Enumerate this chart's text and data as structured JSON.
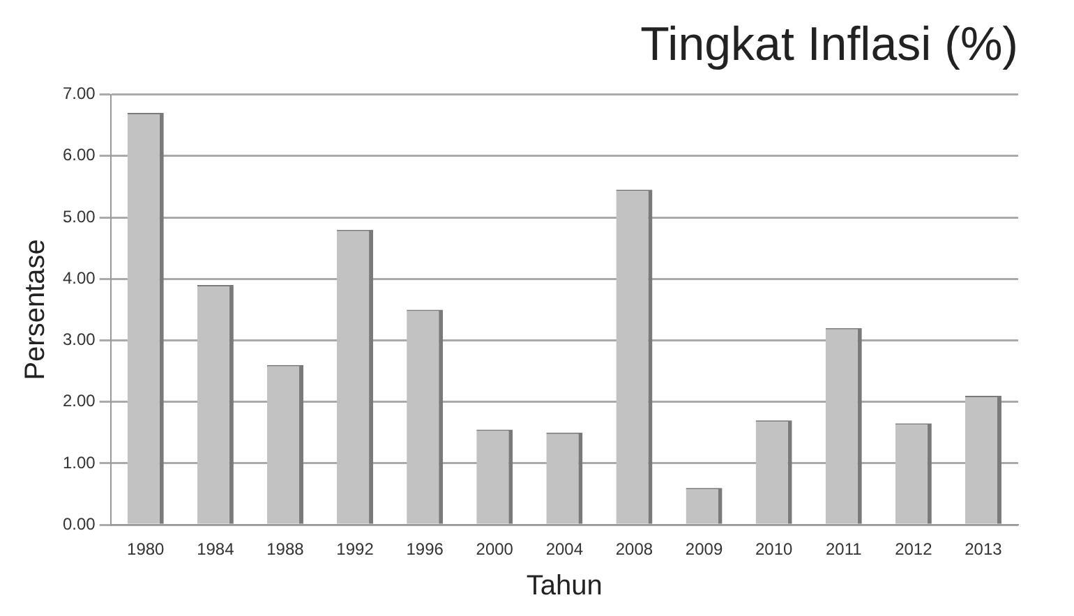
{
  "chart_data": {
    "type": "bar",
    "title": "Tingkat Inflasi (%)",
    "xlabel": "Tahun",
    "ylabel": "Persentase",
    "categories": [
      "1980",
      "1984",
      "1988",
      "1992",
      "1996",
      "2000",
      "2004",
      "2008",
      "2009",
      "2010",
      "2011",
      "2012",
      "2013"
    ],
    "values": [
      6.7,
      3.9,
      2.6,
      4.8,
      3.5,
      1.55,
      1.5,
      5.45,
      0.6,
      1.7,
      3.2,
      1.65,
      2.1
    ],
    "color": "#c2c2c2",
    "ylim": [
      0,
      7
    ],
    "yticks": [
      {
        "value": 0,
        "label": "0.00"
      },
      {
        "value": 1,
        "label": "1.00"
      },
      {
        "value": 2,
        "label": "2.00"
      },
      {
        "value": 3,
        "label": "3.00"
      },
      {
        "value": 4,
        "label": "4.00"
      },
      {
        "value": 5,
        "label": "5.00"
      },
      {
        "value": 6,
        "label": "6.00"
      },
      {
        "value": 7,
        "label": "7.00"
      }
    ],
    "grid": "y"
  }
}
